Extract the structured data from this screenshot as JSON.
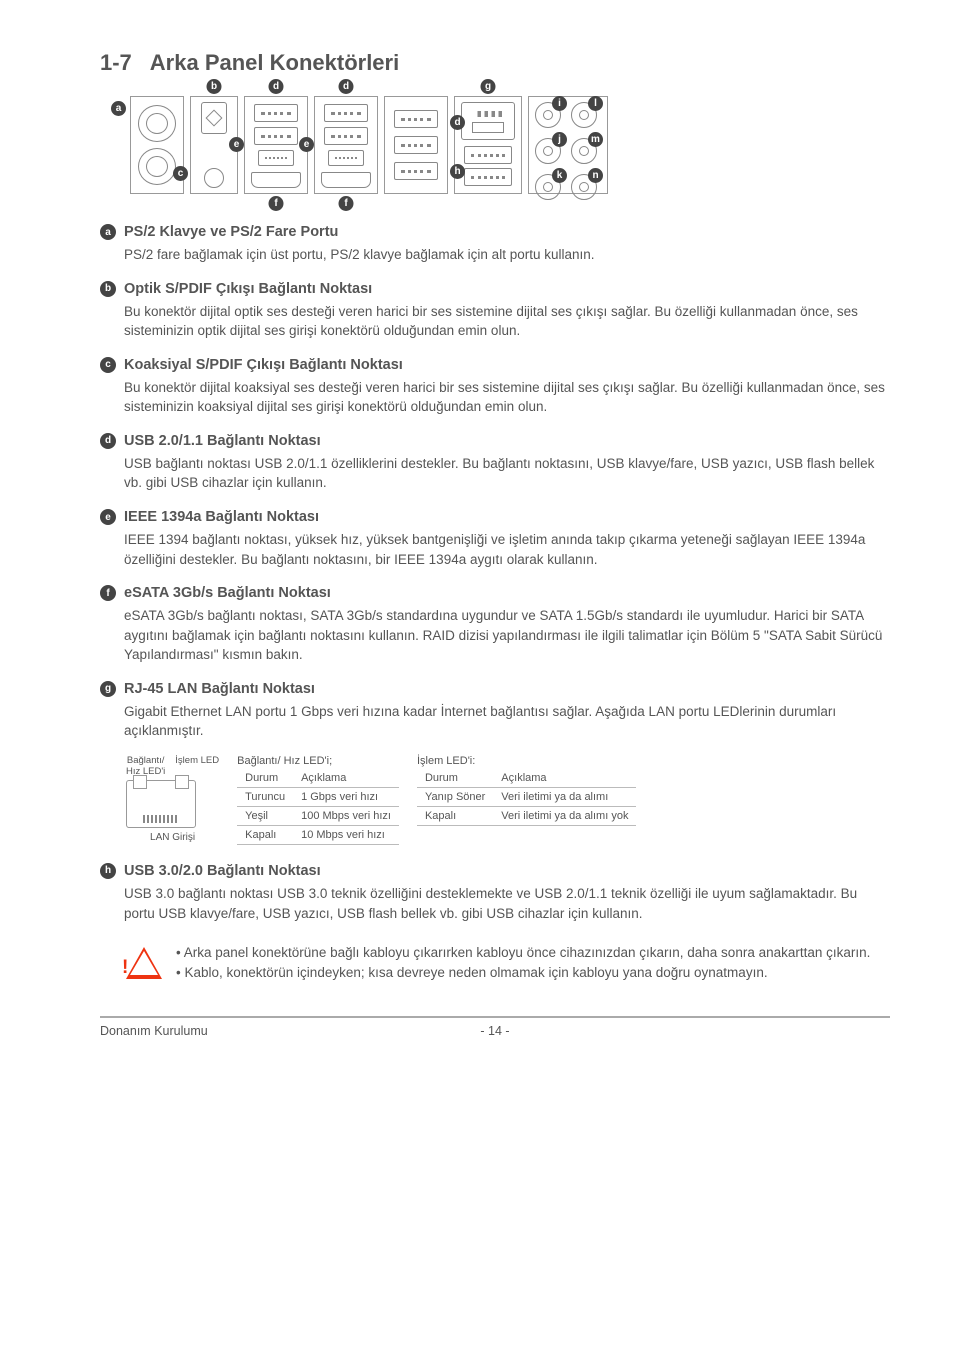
{
  "title_num": "1-7",
  "title_text": "Arka Panel Konektörleri",
  "entries": [
    {
      "key": "a",
      "title": "PS/2 Klavye ve PS/2 Fare Portu",
      "body": "PS/2 fare bağlamak için üst portu, PS/2 klavye bağlamak için alt portu kullanın."
    },
    {
      "key": "b",
      "title": "Optik S/PDIF Çıkışı Bağlantı Noktası",
      "body": "Bu konektör dijital optik ses desteği veren harici bir ses sistemine dijital ses çıkışı sağlar. Bu özelliği kullanmadan önce, ses sisteminizin optik dijital ses girişi konektörü olduğundan emin olun."
    },
    {
      "key": "c",
      "title": "Koaksiyal S/PDIF Çıkışı Bağlantı Noktası",
      "body": "Bu konektör dijital koaksiyal ses desteği veren harici bir ses sistemine dijital ses çıkışı sağlar. Bu özelliği kullanmadan önce, ses sisteminizin koaksiyal dijital ses girişi konektörü olduğundan emin olun."
    },
    {
      "key": "d",
      "title": "USB 2.0/1.1 Bağlantı Noktası",
      "body": "USB bağlantı noktası USB 2.0/1.1 özelliklerini destekler. Bu bağlantı noktasını, USB klavye/fare, USB yazıcı, USB flash bellek vb. gibi USB cihazlar için kullanın."
    },
    {
      "key": "e",
      "title": "IEEE 1394a Bağlantı Noktası",
      "body": "IEEE 1394 bağlantı noktası, yüksek hız, yüksek bantgenişliği ve işletim anında takıp çıkarma yeteneği sağlayan IEEE 1394a özelliğini destekler. Bu bağlantı noktasını, bir IEEE 1394a aygıtı olarak kullanın."
    },
    {
      "key": "f",
      "title": "eSATA 3Gb/s Bağlantı Noktası",
      "body": "eSATA 3Gb/s bağlantı noktası, SATA 3Gb/s standardına uygundur ve SATA 1.5Gb/s standardı ile uyumludur. Harici bir SATA aygıtını bağlamak için bağlantı noktasını kullanın. RAID dizisi yapılandırması ile ilgili talimatlar için Bölüm 5 \"SATA Sabit Sürücü Yapılandırması\" kısmın bakın."
    },
    {
      "key": "g",
      "title": " RJ-45 LAN Bağlantı Noktası",
      "body": "Gigabit Ethernet LAN portu 1 Gbps veri hızına kadar İnternet bağlantısı sağlar. Aşağıda LAN portu LEDlerinin durumları açıklanmıştır."
    },
    {
      "key": "h",
      "title": "USB 3.0/2.0 Bağlantı Noktası",
      "body": "USB 3.0 bağlantı noktası USB 3.0 teknik özelliğini desteklemekte ve USB 2.0/1.1 teknik özelliği ile uyum sağlamaktadır. Bu portu USB klavye/fare, USB yazıcı, USB flash bellek vb. gibi USB cihazlar için kullanın."
    }
  ],
  "lan": {
    "left_top": "Bağlantı/\nHız LED'i",
    "left_top2": "İşlem LED",
    "girisi": "LAN Girişi",
    "t1_title": "Bağlantı/ Hız LED'i;",
    "t1_head": [
      "Durum",
      "Açıklama"
    ],
    "t1_rows": [
      [
        "Turuncu",
        "1 Gbps veri hızı"
      ],
      [
        "Yeşil",
        "100 Mbps veri hızı"
      ],
      [
        "Kapalı",
        "10 Mbps veri hızı"
      ]
    ],
    "t2_title": "İşlem LED'i:",
    "t2_head": [
      "Durum",
      "Açıklama"
    ],
    "t2_rows": [
      [
        "Yanıp Söner",
        "Veri iletimi ya da alımı"
      ],
      [
        "Kapalı",
        "Veri iletimi ya da alımı yok"
      ]
    ]
  },
  "warn": [
    "Arka panel konektörüne bağlı kabloyu çıkarırken kabloyu önce cihazınızdan çıkarın, daha sonra anakarttan çıkarın.",
    "Kablo, konektörün içindeyken; kısa devreye neden olmamak için kabloyu yana doğru oynatmayın."
  ],
  "footer": {
    "left": "Donanım Kurulumu",
    "mid": "- 14 -"
  },
  "dot": {
    "a": "a",
    "b": "b",
    "c": "c",
    "d": "d",
    "e": "e",
    "f": "f",
    "g": "g",
    "h": "h",
    "i": "i",
    "j": "j",
    "k": "k",
    "l": "l",
    "m": "m",
    "n": "n"
  }
}
